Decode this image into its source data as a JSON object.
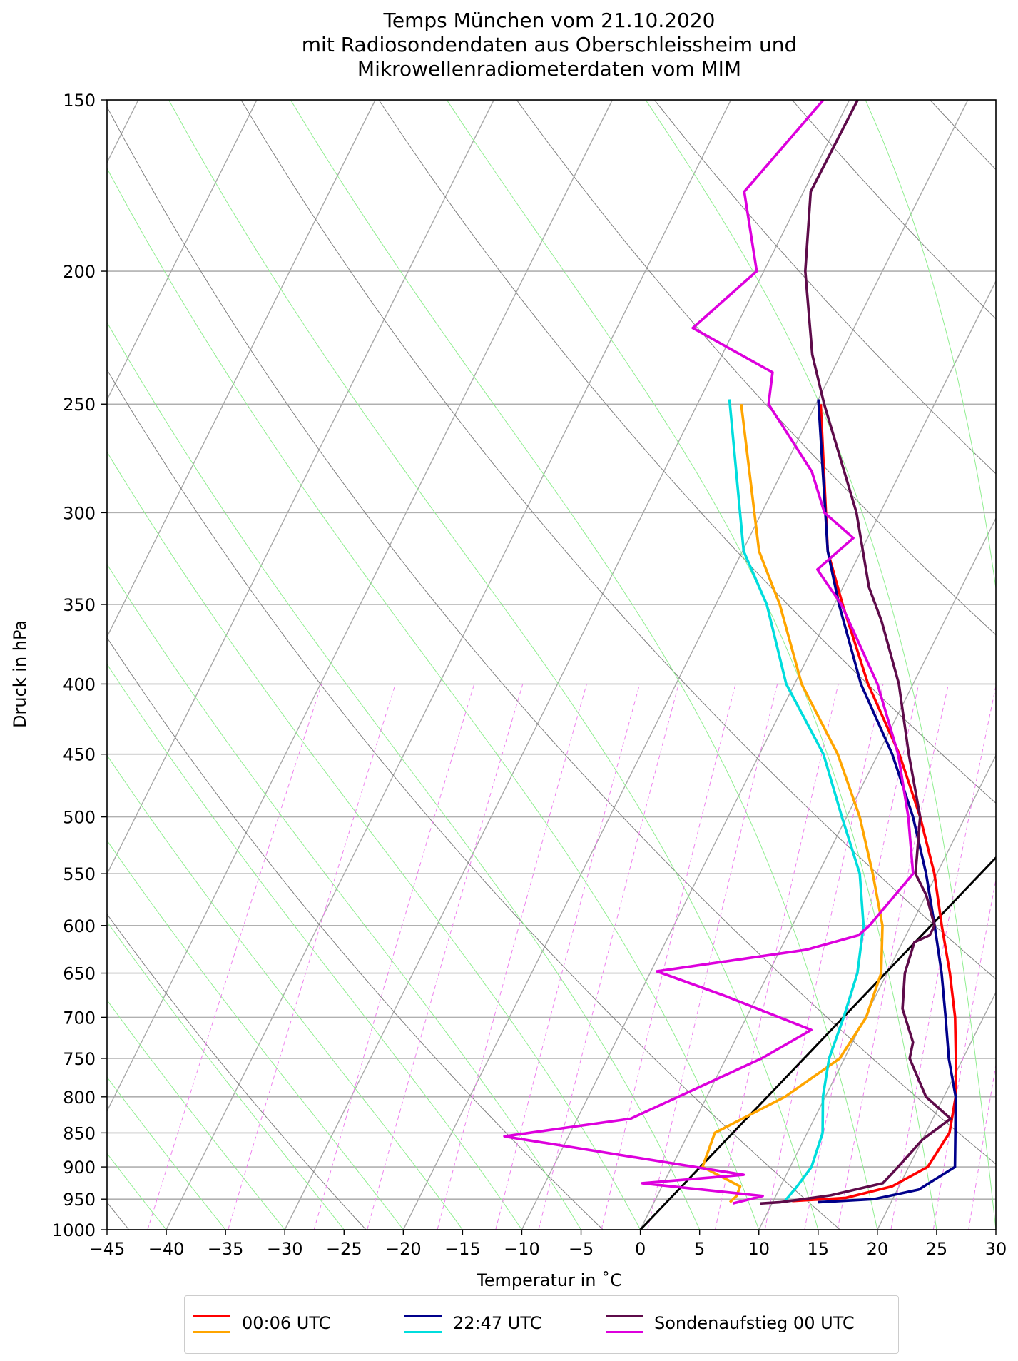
{
  "chart_data": {
    "type": "line",
    "title": [
      "Temps München vom 21.10.2020",
      "mit Radiosondendaten aus Oberschleissheim und",
      "Mikrowellenradiometerdaten vom MIM"
    ],
    "xlabel": "Temperatur in $^\\circ$C",
    "xlabel_display": "Temperatur in ˚C",
    "ylabel": "Druck in hPa",
    "xlim": [
      -45,
      30
    ],
    "ylim": [
      1000,
      150
    ],
    "y_scale": "log",
    "skew": "skew-T log-p diagram",
    "grid": true,
    "x_ticks": [
      "−45",
      "−40",
      "−35",
      "−30",
      "−25",
      "−20",
      "−15",
      "−10",
      "−5",
      "0",
      "5",
      "10",
      "15",
      "20",
      "25",
      "30"
    ],
    "y_ticks": [
      "150",
      "200",
      "250",
      "300",
      "350",
      "400",
      "450",
      "500",
      "550",
      "600",
      "650",
      "700",
      "750",
      "800",
      "850",
      "900",
      "950",
      "1000"
    ],
    "legend_position": "bottom-center",
    "series": [
      {
        "name": "00:06 UTC",
        "kind": "temperature",
        "color": "#ff0000",
        "points": [
          [
            -19.6,
            250
          ],
          [
            -12.8,
            320
          ],
          [
            -9.3,
            350
          ],
          [
            -3.8,
            400
          ],
          [
            1.8,
            450
          ],
          [
            6.2,
            500
          ],
          [
            9.8,
            550
          ],
          [
            12.6,
            600
          ],
          [
            15.3,
            650
          ],
          [
            17.6,
            700
          ],
          [
            19.4,
            750
          ],
          [
            21.0,
            800
          ],
          [
            22.0,
            850
          ],
          [
            21.6,
            900
          ],
          [
            19.4,
            930
          ],
          [
            16.0,
            948
          ],
          [
            11.6,
            953
          ]
        ]
      },
      {
        "name": "00:06 UTC",
        "kind": "dewpoint",
        "color": "#ffa500",
        "points": [
          [
            -26.3,
            250
          ],
          [
            -18.6,
            320
          ],
          [
            -14.6,
            350
          ],
          [
            -9.4,
            400
          ],
          [
            -3.4,
            450
          ],
          [
            1.1,
            500
          ],
          [
            4.6,
            550
          ],
          [
            7.6,
            600
          ],
          [
            9.5,
            650
          ],
          [
            10.1,
            700
          ],
          [
            9.6,
            750
          ],
          [
            6.6,
            800
          ],
          [
            2.2,
            850
          ],
          [
            2.6,
            900
          ],
          [
            6.6,
            930
          ],
          [
            6.7,
            945
          ],
          [
            6.4,
            955
          ]
        ]
      },
      {
        "name": "22:47 UTC",
        "kind": "temperature",
        "color": "#00008b",
        "points": [
          [
            -20.0,
            248
          ],
          [
            -12.8,
            320
          ],
          [
            -9.6,
            350
          ],
          [
            -4.4,
            400
          ],
          [
            1.2,
            450
          ],
          [
            5.6,
            500
          ],
          [
            9.1,
            550
          ],
          [
            12.0,
            600
          ],
          [
            14.6,
            650
          ],
          [
            16.8,
            700
          ],
          [
            18.8,
            750
          ],
          [
            21.0,
            800
          ],
          [
            22.5,
            850
          ],
          [
            23.9,
            900
          ],
          [
            21.8,
            935
          ],
          [
            18.4,
            950
          ],
          [
            13.8,
            955
          ]
        ]
      },
      {
        "name": "22:47 UTC",
        "kind": "dewpoint",
        "color": "#00dddd",
        "points": [
          [
            -27.5,
            248
          ],
          [
            -19.9,
            320
          ],
          [
            -15.7,
            350
          ],
          [
            -10.7,
            400
          ],
          [
            -4.6,
            450
          ],
          [
            -0.4,
            500
          ],
          [
            3.5,
            550
          ],
          [
            6.0,
            600
          ],
          [
            7.5,
            650
          ],
          [
            8.2,
            700
          ],
          [
            8.7,
            750
          ],
          [
            9.8,
            800
          ],
          [
            11.3,
            850
          ],
          [
            11.8,
            900
          ],
          [
            11.4,
            930
          ],
          [
            11.0,
            952
          ]
        ]
      },
      {
        "name": "Sondenaufstieg 00 UTC",
        "kind": "temperature",
        "color": "#5e0b4a",
        "points": [
          [
            -29.3,
            150
          ],
          [
            -29.4,
            175
          ],
          [
            -26.5,
            200
          ],
          [
            -22.4,
            230
          ],
          [
            -19.3,
            250
          ],
          [
            -12.0,
            300
          ],
          [
            -7.8,
            340
          ],
          [
            -5.3,
            360
          ],
          [
            -1.2,
            400
          ],
          [
            2.6,
            450
          ],
          [
            6.2,
            500
          ],
          [
            8.2,
            550
          ],
          [
            10.0,
            570
          ],
          [
            12.0,
            600
          ],
          [
            12.0,
            610
          ],
          [
            11.0,
            617
          ],
          [
            11.5,
            650
          ],
          [
            12.8,
            690
          ],
          [
            15.1,
            730
          ],
          [
            15.5,
            750
          ],
          [
            18.5,
            800
          ],
          [
            21.5,
            830
          ],
          [
            20.0,
            860
          ],
          [
            19.1,
            900
          ],
          [
            18.5,
            925
          ],
          [
            14.6,
            944
          ],
          [
            10.6,
            955
          ],
          [
            9.0,
            957
          ]
        ]
      },
      {
        "name": "Sondenaufstieg 00 UTC",
        "kind": "dewpoint",
        "color": "#dd00dd",
        "points": [
          [
            -32.2,
            150
          ],
          [
            -35.0,
            175
          ],
          [
            -30.6,
            200
          ],
          [
            -33.6,
            220
          ],
          [
            -25.0,
            237
          ],
          [
            -24.0,
            250
          ],
          [
            -17.5,
            280
          ],
          [
            -14.7,
            300
          ],
          [
            -11.2,
            313
          ],
          [
            -12.9,
            330
          ],
          [
            -9.4,
            350
          ],
          [
            -3.0,
            400
          ],
          [
            1.7,
            450
          ],
          [
            5.2,
            500
          ],
          [
            8.0,
            550
          ],
          [
            6.5,
            600
          ],
          [
            6.0,
            610
          ],
          [
            2.2,
            625
          ],
          [
            -9.5,
            648
          ],
          [
            -2.8,
            675
          ],
          [
            6.0,
            715
          ],
          [
            3.0,
            750
          ],
          [
            -5.5,
            830
          ],
          [
            -15.4,
            855
          ],
          [
            6.4,
            912
          ],
          [
            -1.8,
            925
          ],
          [
            8.9,
            945
          ],
          [
            6.7,
            957
          ]
        ]
      }
    ],
    "reference_lines": [
      {
        "kind": "lifted-parcel",
        "color": "#000000",
        "from": [
          0,
          1000
        ],
        "to": [
          30,
          270
        ]
      },
      {
        "kind": "dry-adiabats",
        "color": "#808080"
      },
      {
        "kind": "moist-adiabats",
        "color": "#90ee90"
      },
      {
        "kind": "mixing-ratio-lines",
        "color": "#ee82ee"
      }
    ]
  },
  "legend": {
    "items": [
      {
        "label": "00:06 UTC",
        "colors": [
          "#ff0000",
          "#ffa500"
        ]
      },
      {
        "label": "22:47 UTC",
        "colors": [
          "#00008b",
          "#00dddd"
        ]
      },
      {
        "label": "Sondenaufstieg 00 UTC",
        "colors": [
          "#5e0b4a",
          "#dd00dd"
        ]
      }
    ]
  }
}
